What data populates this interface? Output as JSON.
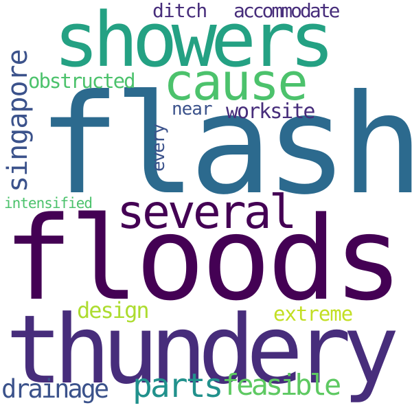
{
  "words": [
    {
      "id": "flash",
      "text": "flash",
      "color": "#2c6a8e"
    },
    {
      "id": "floods",
      "text": "floods",
      "color": "#440154"
    },
    {
      "id": "thundery",
      "text": "thundery",
      "color": "#472d7b"
    },
    {
      "id": "showers",
      "text": "showers",
      "color": "#24a183"
    },
    {
      "id": "cause",
      "text": "cause",
      "color": "#4cc26c"
    },
    {
      "id": "several",
      "text": "several",
      "color": "#440154"
    },
    {
      "id": "singapore",
      "text": "singapore",
      "color": "#3b528b"
    },
    {
      "id": "parts",
      "text": "parts",
      "color": "#21918c"
    },
    {
      "id": "feasible",
      "text": "feasible",
      "color": "#5ec962"
    },
    {
      "id": "drainage",
      "text": "drainage",
      "color": "#3b528b"
    },
    {
      "id": "ditch",
      "text": "ditch",
      "color": "#472d7b"
    },
    {
      "id": "accommodate",
      "text": "accommodate",
      "color": "#472d7b"
    },
    {
      "id": "obstructed",
      "text": "obstructed",
      "color": "#4cc26c"
    },
    {
      "id": "worksite",
      "text": "worksite",
      "color": "#472d7b"
    },
    {
      "id": "near",
      "text": "near",
      "color": "#3b528b"
    },
    {
      "id": "every",
      "text": "every",
      "color": "#3b528b"
    },
    {
      "id": "intensified",
      "text": "intensified",
      "color": "#4cc26c"
    },
    {
      "id": "design",
      "text": "design",
      "color": "#addc30"
    },
    {
      "id": "extreme",
      "text": "extreme",
      "color": "#c2df23"
    }
  ]
}
